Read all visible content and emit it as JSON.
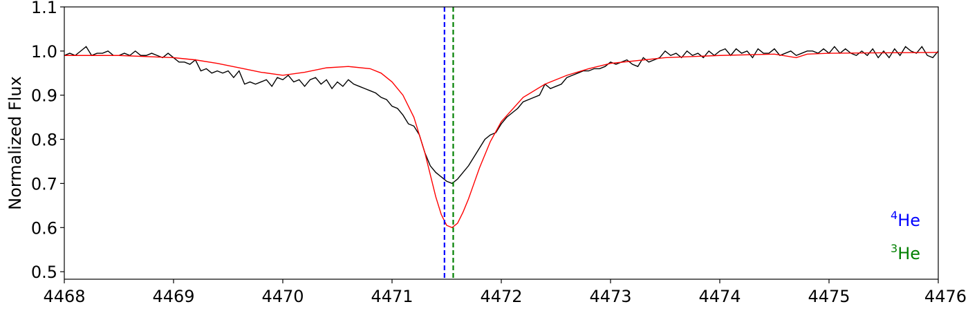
{
  "chart_data": {
    "type": "line",
    "ylabel": "Normalized Flux",
    "xlim": [
      4468,
      4476
    ],
    "ylim": [
      0.483,
      1.1
    ],
    "xticks": [
      4468,
      4469,
      4470,
      4471,
      4472,
      4473,
      4474,
      4475,
      4476
    ],
    "yticks": [
      0.5,
      0.6,
      0.7,
      0.8,
      0.9,
      {
        "value": 1,
        "label": "1.0"
      },
      1.1
    ],
    "series": [
      {
        "color": "#000000",
        "x": [
          4468.0,
          4468.05,
          4468.1,
          4468.15,
          4468.2,
          4468.25,
          4468.3,
          4468.35,
          4468.4,
          4468.45,
          4468.5,
          4468.55,
          4468.6,
          4468.65,
          4468.7,
          4468.75,
          4468.8,
          4468.85,
          4468.9,
          4468.95,
          4469.0,
          4469.05,
          4469.1,
          4469.15,
          4469.2,
          4469.25,
          4469.3,
          4469.35,
          4469.4,
          4469.45,
          4469.5,
          4469.55,
          4469.6,
          4469.65,
          4469.7,
          4469.75,
          4469.8,
          4469.85,
          4469.9,
          4469.95,
          4470.0,
          4470.05,
          4470.1,
          4470.15,
          4470.2,
          4470.25,
          4470.3,
          4470.35,
          4470.4,
          4470.45,
          4470.5,
          4470.55,
          4470.6,
          4470.65,
          4470.7,
          4470.75,
          4470.8,
          4470.85,
          4470.9,
          4470.95,
          4471.0,
          4471.05,
          4471.1,
          4471.15,
          4471.2,
          4471.25,
          4471.3,
          4471.35,
          4471.4,
          4471.45,
          4471.5,
          4471.55,
          4471.6,
          4471.65,
          4471.7,
          4471.75,
          4471.8,
          4471.85,
          4471.9,
          4471.95,
          4472.0,
          4472.05,
          4472.1,
          4472.15,
          4472.2,
          4472.25,
          4472.3,
          4472.35,
          4472.4,
          4472.45,
          4472.5,
          4472.55,
          4472.6,
          4472.65,
          4472.7,
          4472.75,
          4472.8,
          4472.85,
          4472.9,
          4472.95,
          4473.0,
          4473.05,
          4473.1,
          4473.15,
          4473.2,
          4473.25,
          4473.3,
          4473.35,
          4473.4,
          4473.45,
          4473.5,
          4473.55,
          4473.6,
          4473.65,
          4473.7,
          4473.75,
          4473.8,
          4473.85,
          4473.9,
          4473.95,
          4474.0,
          4474.05,
          4474.1,
          4474.15,
          4474.2,
          4474.25,
          4474.3,
          4474.35,
          4474.4,
          4474.45,
          4474.5,
          4474.55,
          4474.6,
          4474.65,
          4474.7,
          4474.75,
          4474.8,
          4474.85,
          4474.9,
          4474.95,
          4475.0,
          4475.05,
          4475.1,
          4475.15,
          4475.2,
          4475.25,
          4475.3,
          4475.35,
          4475.4,
          4475.45,
          4475.5,
          4475.55,
          4475.6,
          4475.65,
          4475.7,
          4475.75,
          4475.8,
          4475.85,
          4475.9,
          4475.95,
          4476.0
        ],
        "values": [
          0.99,
          0.995,
          0.99,
          1.0,
          1.01,
          0.99,
          0.995,
          0.995,
          1.0,
          0.99,
          0.99,
          0.995,
          0.99,
          1.0,
          0.99,
          0.99,
          0.995,
          0.99,
          0.985,
          0.995,
          0.985,
          0.975,
          0.975,
          0.97,
          0.98,
          0.955,
          0.96,
          0.95,
          0.955,
          0.95,
          0.955,
          0.94,
          0.955,
          0.925,
          0.93,
          0.925,
          0.93,
          0.935,
          0.92,
          0.94,
          0.935,
          0.945,
          0.93,
          0.935,
          0.92,
          0.935,
          0.94,
          0.925,
          0.935,
          0.915,
          0.93,
          0.92,
          0.935,
          0.925,
          0.92,
          0.915,
          0.91,
          0.905,
          0.895,
          0.89,
          0.875,
          0.87,
          0.855,
          0.835,
          0.83,
          0.81,
          0.77,
          0.74,
          0.725,
          0.715,
          0.705,
          0.7,
          0.71,
          0.725,
          0.74,
          0.76,
          0.78,
          0.8,
          0.81,
          0.815,
          0.835,
          0.85,
          0.86,
          0.87,
          0.885,
          0.89,
          0.895,
          0.9,
          0.925,
          0.915,
          0.92,
          0.925,
          0.94,
          0.945,
          0.95,
          0.955,
          0.955,
          0.96,
          0.96,
          0.965,
          0.975,
          0.97,
          0.975,
          0.98,
          0.97,
          0.965,
          0.985,
          0.975,
          0.98,
          0.985,
          1.0,
          0.99,
          0.995,
          0.985,
          1.0,
          0.99,
          0.995,
          0.985,
          1.0,
          0.99,
          1.0,
          1.005,
          0.99,
          1.005,
          0.995,
          1.0,
          0.985,
          1.005,
          0.995,
          0.995,
          1.005,
          0.99,
          0.995,
          1.0,
          0.99,
          0.995,
          1.0,
          1.0,
          0.995,
          1.005,
          0.995,
          1.01,
          0.995,
          1.005,
          0.995,
          0.99,
          1.0,
          0.99,
          1.005,
          0.985,
          1.0,
          0.985,
          1.005,
          0.99,
          1.01,
          1.0,
          0.995,
          1.01,
          0.99,
          0.985,
          1.0
        ]
      },
      {
        "color": "#ff0000",
        "x": [
          4468.0,
          4468.5,
          4469.0,
          4469.2,
          4469.4,
          4469.6,
          4469.8,
          4470.0,
          4470.2,
          4470.4,
          4470.6,
          4470.8,
          4470.9,
          4471.0,
          4471.1,
          4471.2,
          4471.3,
          4471.35,
          4471.4,
          4471.45,
          4471.5,
          4471.55,
          4471.6,
          4471.65,
          4471.7,
          4471.75,
          4471.8,
          4471.9,
          4472.0,
          4472.2,
          4472.4,
          4472.6,
          4472.8,
          4473.0,
          4473.5,
          4474.0,
          4474.5,
          4474.7,
          4474.8,
          4475.0,
          4475.5,
          4476.0
        ],
        "values": [
          0.99,
          0.99,
          0.985,
          0.98,
          0.972,
          0.962,
          0.952,
          0.945,
          0.952,
          0.962,
          0.965,
          0.96,
          0.95,
          0.93,
          0.9,
          0.85,
          0.77,
          0.72,
          0.67,
          0.63,
          0.605,
          0.6,
          0.61,
          0.635,
          0.665,
          0.7,
          0.735,
          0.795,
          0.84,
          0.895,
          0.925,
          0.945,
          0.96,
          0.972,
          0.985,
          0.99,
          0.993,
          0.985,
          0.993,
          0.995,
          0.996,
          0.997
        ]
      }
    ],
    "vlines": [
      {
        "x": 4471.48,
        "color": "#0000ff"
      },
      {
        "x": 4471.56,
        "color": "#008000"
      }
    ],
    "annotations": [
      {
        "sup": "4",
        "text": "He",
        "color": "#0000ff"
      },
      {
        "sup": "3",
        "text": "He",
        "color": "#008000"
      }
    ]
  }
}
